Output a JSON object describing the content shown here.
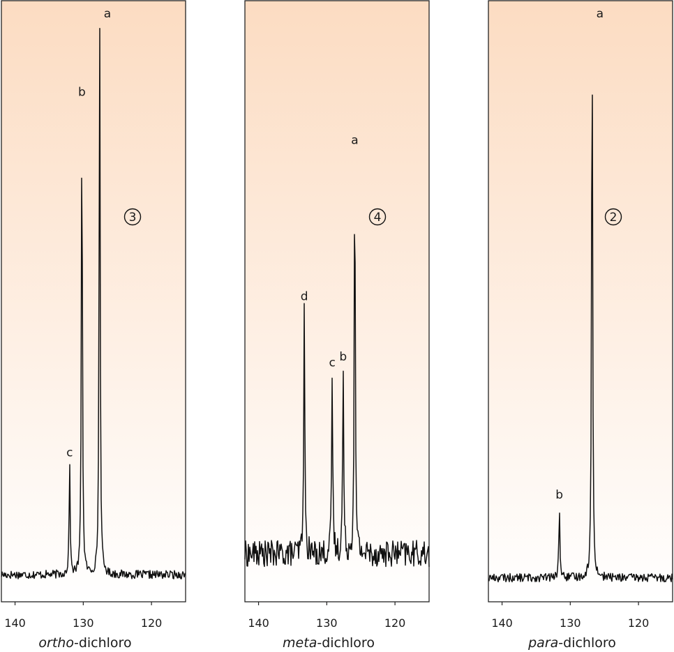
{
  "chart_data": [
    {
      "type": "line",
      "xlabel_prefix": "ortho",
      "xlabel_suffix": "-dichloro",
      "xlim": [
        142,
        115
      ],
      "ylim": [
        0,
        1
      ],
      "x_ticks": [
        140,
        130,
        120
      ],
      "grid": false,
      "signal_count": "3",
      "baseline": 0.045,
      "peaks": [
        {
          "label": "a",
          "ppm": 127.6,
          "height": 1.0
        },
        {
          "label": "b",
          "ppm": 130.2,
          "height": 0.83
        },
        {
          "label": "c",
          "ppm": 132.0,
          "height": 0.23
        }
      ]
    },
    {
      "type": "line",
      "xlabel_prefix": "meta",
      "xlabel_suffix": "-dichloro",
      "xlim": [
        142,
        115
      ],
      "ylim": [
        0,
        1
      ],
      "x_ticks": [
        140,
        130,
        120
      ],
      "grid": false,
      "signal_count": "4",
      "baseline": 0.08,
      "peaks": [
        {
          "label": "a",
          "ppm": 125.9,
          "height": 0.75
        },
        {
          "label": "b",
          "ppm": 127.6,
          "height": 0.39
        },
        {
          "label": "c",
          "ppm": 129.2,
          "height": 0.38
        },
        {
          "label": "d",
          "ppm": 133.3,
          "height": 0.49
        }
      ]
    },
    {
      "type": "line",
      "xlabel_prefix": "para",
      "xlabel_suffix": "-dichloro",
      "xlim": [
        142,
        115
      ],
      "ylim": [
        0,
        1
      ],
      "x_ticks": [
        140,
        130,
        120
      ],
      "grid": false,
      "signal_count": "2",
      "baseline": 0.04,
      "peaks": [
        {
          "label": "a",
          "ppm": 126.8,
          "height": 0.99
        },
        {
          "label": "b",
          "ppm": 131.6,
          "height": 0.16
        }
      ]
    }
  ],
  "colors": {
    "panel_top": "#fcdcc2",
    "panel_bottom": "#ffffff",
    "line": "#111111",
    "frame": "#222222"
  }
}
